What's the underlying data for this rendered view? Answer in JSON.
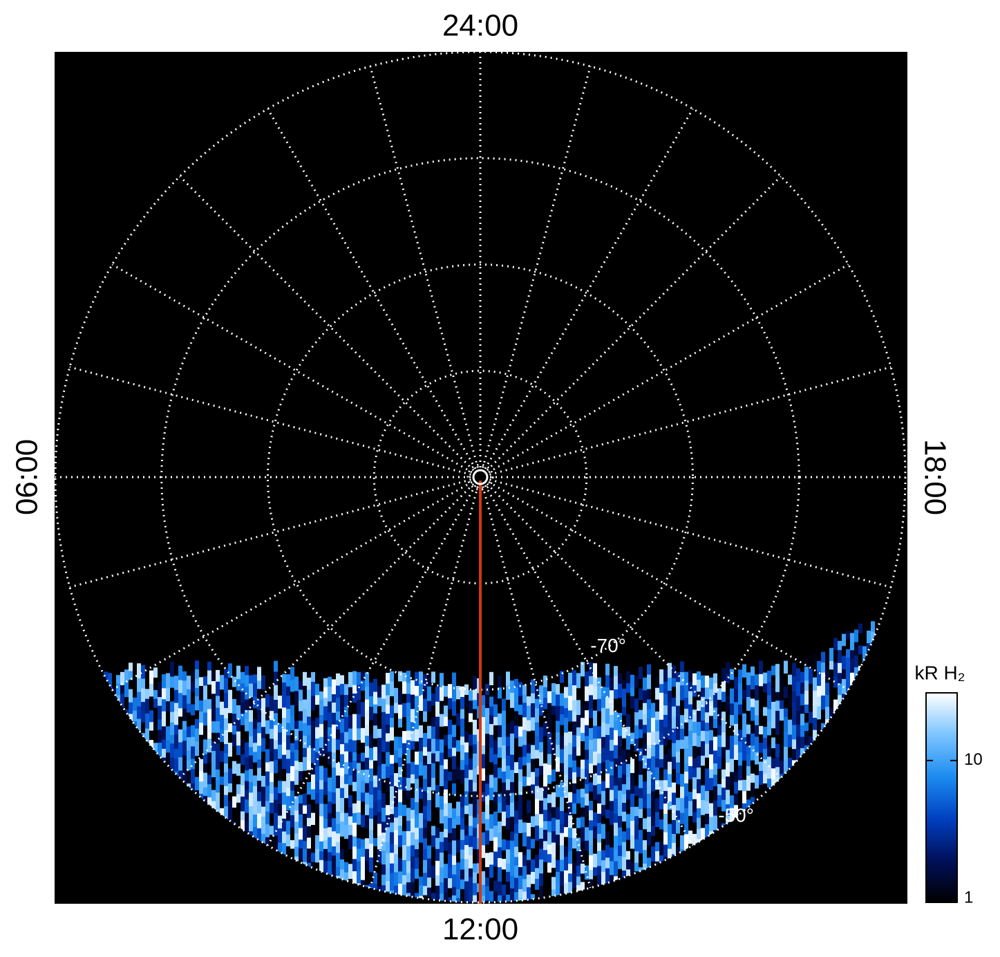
{
  "chart_data": {
    "type": "polar-map",
    "time_labels": {
      "top": "24:00",
      "left": "06:00",
      "right": "18:00",
      "bottom": "12:00"
    },
    "rlim": [
      -90,
      -50
    ],
    "rticks": [
      -80,
      {
        "value": -70,
        "label": "-70°"
      },
      -60,
      {
        "value": -50,
        "label": "-50°"
      }
    ],
    "colorbar": {
      "label": "kR H₂",
      "log": true,
      "clim": [
        1,
        30
      ],
      "ticks": [
        1,
        10
      ],
      "colors": [
        "#000000",
        "#00105a",
        "#0040c0",
        "#1c8cf0",
        "#7cc4ff",
        "#ffffff"
      ]
    },
    "grid": true
  }
}
